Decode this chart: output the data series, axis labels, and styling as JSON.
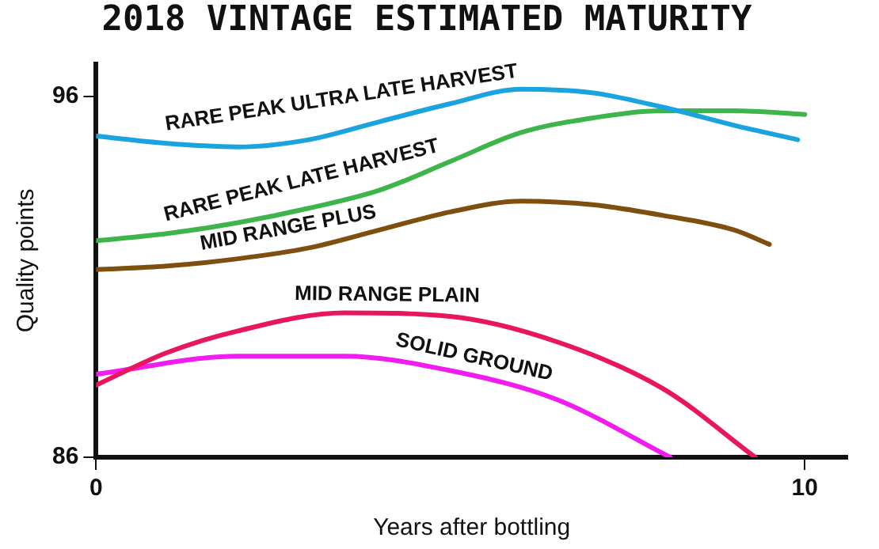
{
  "chart_data": {
    "type": "line",
    "title": "2018 VINTAGE ESTIMATED MATURITY",
    "xlabel": "Years after bottling",
    "ylabel": "Quality points",
    "xlim": [
      0,
      10.6
    ],
    "xticks": [
      0,
      10
    ],
    "ylim": [
      86,
      96.9
    ],
    "yticks": [
      86,
      96
    ],
    "grid": false,
    "legend": false,
    "marker": "none",
    "line_style": "solid",
    "series": [
      {
        "name": "RARE PEAK ULTRA LATE HARVEST",
        "color": "#1ba3e0",
        "x": [
          0,
          1,
          2,
          3,
          4,
          5,
          6,
          7,
          8,
          9,
          9.9
        ],
        "values": [
          94.9,
          94.7,
          94.6,
          94.8,
          95.3,
          95.8,
          96.2,
          96.1,
          95.7,
          95.2,
          94.8
        ]
      },
      {
        "name": "RARE PEAK LATE HARVEST",
        "color": "#3db54a",
        "x": [
          0,
          1,
          2,
          3,
          4,
          5,
          6,
          7,
          8,
          9,
          10
        ],
        "values": [
          92.0,
          92.2,
          92.5,
          92.9,
          93.4,
          94.2,
          95.0,
          95.4,
          95.6,
          95.6,
          95.5
        ]
      },
      {
        "name": "MID RANGE PLUS",
        "color": "#7f4f0f",
        "x": [
          0,
          1,
          2,
          3,
          4,
          5,
          6,
          7,
          8,
          9,
          9.5
        ],
        "values": [
          91.2,
          91.3,
          91.5,
          91.8,
          92.3,
          92.8,
          93.1,
          93.0,
          92.7,
          92.3,
          91.9
        ]
      },
      {
        "name": "MID RANGE PLAIN",
        "color": "#e8175d",
        "x": [
          0,
          1,
          2,
          3.5,
          5,
          6.5,
          8,
          9.3
        ],
        "values": [
          88.0,
          88.9,
          89.5,
          90.0,
          89.9,
          89.2,
          87.9,
          86.0
        ]
      },
      {
        "name": "SOLID GROUND",
        "color": "#f01cf0",
        "x": [
          0,
          2,
          3.5,
          5,
          6.5,
          8.1
        ],
        "values": [
          88.3,
          88.8,
          88.8,
          88.4,
          87.6,
          86.0
        ]
      }
    ]
  }
}
